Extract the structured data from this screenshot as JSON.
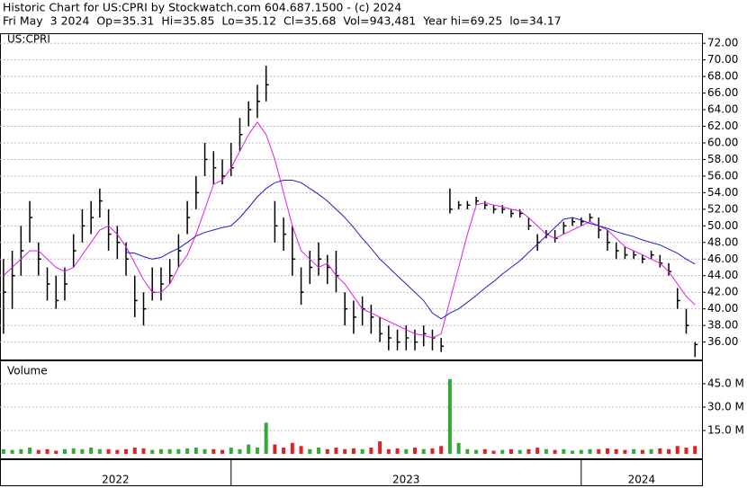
{
  "chart_data": {
    "type": "ohlc",
    "title": "Historic Chart for US:CPRI by Stockwatch.com 604.687.1500 - (c) 2024",
    "subtitle": "Fri May  3 2024  Op=35.31  Hi=35.85  Lo=35.12  Cl=35.68  Vol=943,481  Year hi=69.25  lo=34.17",
    "label": "US:CPRI",
    "x": [
      2022.35,
      2022.375,
      2022.4,
      2022.425,
      2022.45,
      2022.475,
      2022.5,
      2022.525,
      2022.55,
      2022.575,
      2022.6,
      2022.625,
      2022.65,
      2022.675,
      2022.7,
      2022.725,
      2022.75,
      2022.775,
      2022.8,
      2022.825,
      2022.85,
      2022.875,
      2022.9,
      2022.925,
      2022.95,
      2022.975,
      2023,
      2023.025,
      2023.05,
      2023.075,
      2023.1,
      2023.125,
      2023.15,
      2023.175,
      2023.2,
      2023.225,
      2023.25,
      2023.275,
      2023.3,
      2023.325,
      2023.35,
      2023.375,
      2023.4,
      2023.425,
      2023.45,
      2023.475,
      2023.5,
      2023.525,
      2023.55,
      2023.575,
      2023.6,
      2023.625,
      2023.65,
      2023.675,
      2023.7,
      2023.725,
      2023.75,
      2023.775,
      2023.8,
      2023.825,
      2023.85,
      2023.875,
      2023.9,
      2023.925,
      2023.95,
      2023.975,
      2024,
      2024.025,
      2024.05,
      2024.075,
      2024.1,
      2024.125,
      2024.15,
      2024.175,
      2024.2,
      2024.225,
      2024.25,
      2024.275,
      2024.3,
      2024.325
    ],
    "xlim": [
      2022.34,
      2024.345
    ],
    "xticks": [
      2023,
      2024
    ],
    "year_labels": [
      "2022",
      "2023",
      "2024"
    ],
    "high": [
      46,
      47,
      50,
      53,
      48,
      45,
      44,
      45,
      49,
      52,
      53,
      54.5,
      52,
      50,
      48,
      44,
      42,
      45,
      45,
      46,
      49,
      53,
      56,
      60,
      59,
      58,
      60,
      63,
      65,
      67,
      69.3,
      53,
      51,
      50,
      45,
      47,
      48,
      46.5,
      47,
      42,
      41,
      41.5,
      40.5,
      39,
      38,
      37.5,
      38,
      37.5,
      38,
      37.5,
      36.5,
      54.5,
      53,
      53,
      53.5,
      53,
      52.5,
      52.5,
      52,
      52,
      51,
      49,
      49.5,
      49.5,
      50.5,
      51,
      51,
      51.5,
      51,
      49.5,
      48,
      47.5,
      47,
      46.5,
      47,
      46.5,
      45.5,
      42.5,
      40,
      36
    ],
    "low": [
      37,
      40,
      44,
      48,
      44,
      41,
      40,
      41,
      45,
      48,
      49,
      51,
      47,
      46,
      44,
      39,
      38,
      41,
      41,
      43,
      45,
      49,
      52,
      56,
      55,
      55,
      56,
      59,
      62,
      63,
      65,
      48,
      47,
      44,
      40.5,
      43,
      44,
      43,
      42,
      38,
      37,
      38,
      37,
      36,
      35,
      35,
      35,
      35,
      35.5,
      35,
      34.8,
      51.5,
      52,
      52,
      52.5,
      52,
      51.5,
      51.5,
      51,
      51,
      49.5,
      47,
      48.5,
      48,
      49,
      50,
      50,
      50.5,
      48.5,
      47,
      46,
      46,
      46,
      45.5,
      46,
      45,
      44,
      40,
      37,
      34.2
    ],
    "close": [
      42,
      44,
      47,
      51,
      46,
      43,
      41,
      43,
      47,
      50,
      51,
      53,
      49,
      48,
      46,
      41,
      40,
      42,
      43,
      44,
      47,
      51,
      54,
      58,
      57,
      56,
      57,
      61,
      64,
      65,
      67,
      50,
      49,
      46,
      42,
      45,
      46,
      45,
      44,
      40,
      39,
      40,
      39,
      37,
      36.5,
      36,
      36.5,
      36,
      37,
      36.5,
      35.5,
      52,
      52.5,
      52.5,
      53,
      52.5,
      52,
      52,
      51.5,
      51.5,
      50,
      48,
      49,
      48.5,
      50,
      50.5,
      50.5,
      51,
      49.5,
      48,
      47,
      46.5,
      46.5,
      46,
      46.5,
      45.5,
      44.5,
      41,
      38,
      35.7
    ],
    "color": "#000000",
    "averages": [
      {
        "color": "#e020e0",
        "values": [
          44,
          45,
          46,
          47,
          47,
          46,
          45,
          44.5,
          45,
          46.5,
          48,
          49.5,
          50,
          49,
          47.5,
          45.5,
          43.5,
          42,
          42,
          43,
          45,
          46.5,
          49,
          52,
          55,
          55.5,
          57,
          59,
          61,
          62.5,
          61,
          58,
          54,
          50,
          47,
          46,
          45,
          45.5,
          44,
          43,
          41.5,
          40,
          39.5,
          39,
          38.5,
          38,
          37.5,
          37,
          36.8,
          36.5,
          37,
          41,
          45,
          49,
          52.5,
          52.8,
          52.5,
          52.3,
          52,
          51.8,
          51,
          50,
          49,
          48.5,
          49,
          49.5,
          50,
          50.5,
          50,
          49.5,
          48.5,
          47.5,
          47,
          46.5,
          46,
          45.5,
          44.5,
          43,
          41.5,
          40.5
        ]
      },
      {
        "color": "#2020c0",
        "values": [
          null,
          null,
          null,
          null,
          null,
          null,
          null,
          null,
          null,
          null,
          null,
          null,
          null,
          null,
          46.8,
          46.7,
          46.3,
          46,
          46.2,
          46.8,
          47.3,
          48,
          48.8,
          49.2,
          49.5,
          49.8,
          50,
          51,
          52.2,
          53.5,
          54.5,
          55.2,
          55.5,
          55.5,
          55.2,
          54.5,
          53.8,
          53,
          52,
          51,
          49.8,
          48.5,
          47.3,
          46,
          45,
          44,
          43,
          42,
          41,
          39.5,
          38.8,
          39.5,
          40,
          40.8,
          41.6,
          42.5,
          43.3,
          44.2,
          45,
          45.8,
          46.8,
          47.8,
          48.8,
          49.8,
          50.8,
          51,
          50.7,
          50.3,
          50,
          49.7,
          49.3,
          49,
          48.7,
          48.3,
          48,
          47.7,
          47.2,
          46.7,
          46,
          45.4
        ]
      }
    ],
    "ylim": [
      33.9,
      73.1
    ],
    "yticks": [
      {
        "value": 36,
        "label": "36.00"
      },
      {
        "value": 38,
        "label": "38.00"
      },
      {
        "value": 40,
        "label": "40.00"
      },
      {
        "value": 42,
        "label": "42.00"
      },
      {
        "value": 44,
        "label": "44.00"
      },
      {
        "value": 46,
        "label": "46.00"
      },
      {
        "value": 48,
        "label": "48.00"
      },
      {
        "value": 50,
        "label": "50.00"
      },
      {
        "value": 52,
        "label": "52.00"
      },
      {
        "value": 54,
        "label": "54.00"
      },
      {
        "value": 56,
        "label": "56.00"
      },
      {
        "value": 58,
        "label": "58.00"
      },
      {
        "value": 60,
        "label": "60.00"
      },
      {
        "value": 62,
        "label": "62.00"
      },
      {
        "value": 64,
        "label": "64.00"
      },
      {
        "value": 66,
        "label": "66.00"
      },
      {
        "value": 68,
        "label": "68.00"
      },
      {
        "value": 70,
        "label": "70.00"
      },
      {
        "value": 72,
        "label": "72.00"
      }
    ],
    "grid": true,
    "volume": {
      "title": "Volume",
      "values": [
        3,
        2.5,
        3,
        4,
        2.5,
        3,
        2,
        3,
        3.5,
        3,
        4,
        3,
        3,
        2.5,
        3,
        4,
        3.5,
        2.5,
        3,
        3,
        3,
        3.5,
        4,
        3,
        3,
        2.5,
        4,
        3,
        6,
        4,
        20,
        6,
        4,
        7,
        5,
        3,
        4,
        3,
        4,
        3,
        3.5,
        3,
        4,
        8,
        3,
        3.5,
        3,
        4,
        3,
        3.5,
        5,
        48,
        7,
        3,
        2.5,
        3,
        2,
        2.5,
        3,
        2.5,
        3,
        4,
        3,
        2.5,
        3,
        2,
        2.5,
        3,
        3,
        3.5,
        3,
        2.5,
        3,
        2.5,
        3,
        3.5,
        3,
        5,
        4,
        5
      ],
      "up_color": "#33aa33",
      "down_color": "#dd2222",
      "ylim": [
        -2.9,
        59.4
      ],
      "yticks": [
        {
          "value": 15,
          "label": "15.0 M"
        },
        {
          "value": 30,
          "label": "30.0 M"
        },
        {
          "value": 45,
          "label": "45.0 M"
        }
      ]
    }
  }
}
